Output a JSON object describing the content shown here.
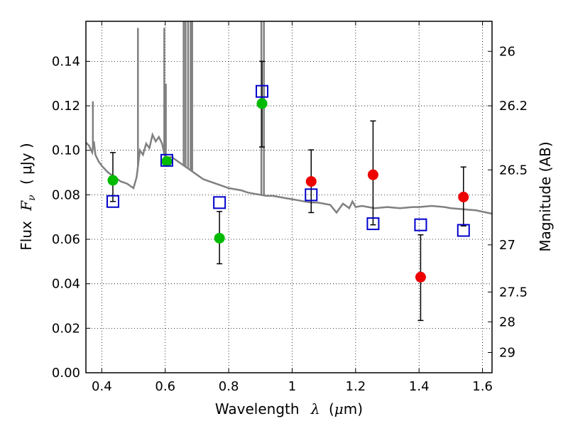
{
  "chart_data": {
    "type": "scatter",
    "xlabel": "Wavelength",
    "xlabel_symbol": "λ",
    "xlabel_unit_open": "(",
    "xlabel_unit_mu": "μ",
    "xlabel_unit_rest": "m)",
    "ylabel": "Flux",
    "ylabel_symbol_base": "F",
    "ylabel_symbol_sub": "ν",
    "ylabel_unit": "( μJy )",
    "y2label": "Magnitude (AB)",
    "xlim": [
      0.35,
      1.63
    ],
    "ylim": [
      0.0,
      0.158
    ],
    "grid": true,
    "x_ticks": [
      0.4,
      0.6,
      0.8,
      1.0,
      1.2,
      1.4,
      1.6
    ],
    "x_tick_labels": [
      "0.4",
      "0.6",
      "0.8",
      "1",
      "1.2",
      "1.4",
      "1.6"
    ],
    "y_ticks": [
      0.0,
      0.02,
      0.04,
      0.06,
      0.08,
      0.1,
      0.12,
      0.14
    ],
    "y_tick_labels": [
      "0.00",
      "0.02",
      "0.04",
      "0.06",
      "0.08",
      "0.10",
      "0.12",
      "0.14"
    ],
    "y2_ticks": [
      {
        "label": "26",
        "flux": 0.1445
      },
      {
        "label": "26.2",
        "flux": 0.12
      },
      {
        "label": "26.5",
        "flux": 0.0912
      },
      {
        "label": "27",
        "flux": 0.0575
      },
      {
        "label": "27.5",
        "flux": 0.0363
      },
      {
        "label": "28",
        "flux": 0.0229
      },
      {
        "label": "29",
        "flux": 0.0091
      }
    ],
    "series": [
      {
        "kind": "line",
        "color": "#808080",
        "points": [
          [
            0.35,
            0.1035
          ],
          [
            0.36,
            0.102
          ],
          [
            0.37,
            0.099
          ],
          [
            0.375,
            0.104
          ],
          [
            0.38,
            0.098
          ],
          [
            0.39,
            0.095
          ],
          [
            0.4,
            0.093
          ],
          [
            0.42,
            0.09
          ],
          [
            0.44,
            0.088
          ],
          [
            0.46,
            0.086
          ],
          [
            0.48,
            0.085
          ],
          [
            0.5,
            0.083
          ],
          [
            0.51,
            0.088
          ],
          [
            0.52,
            0.1
          ],
          [
            0.53,
            0.098
          ],
          [
            0.54,
            0.103
          ],
          [
            0.55,
            0.101
          ],
          [
            0.56,
            0.107
          ],
          [
            0.57,
            0.104
          ],
          [
            0.58,
            0.106
          ],
          [
            0.59,
            0.103
          ],
          [
            0.6,
            0.0965
          ],
          [
            0.62,
            0.097
          ],
          [
            0.64,
            0.095
          ],
          [
            0.66,
            0.093
          ],
          [
            0.68,
            0.091
          ],
          [
            0.7,
            0.089
          ],
          [
            0.72,
            0.087
          ],
          [
            0.74,
            0.086
          ],
          [
            0.76,
            0.085
          ],
          [
            0.78,
            0.084
          ],
          [
            0.8,
            0.083
          ],
          [
            0.82,
            0.0825
          ],
          [
            0.84,
            0.082
          ],
          [
            0.86,
            0.081
          ],
          [
            0.88,
            0.0805
          ],
          [
            0.9,
            0.08
          ],
          [
            0.92,
            0.0795
          ],
          [
            0.94,
            0.0795
          ],
          [
            0.96,
            0.079
          ],
          [
            0.98,
            0.0785
          ],
          [
            1.0,
            0.078
          ],
          [
            1.02,
            0.0775
          ],
          [
            1.04,
            0.077
          ],
          [
            1.06,
            0.0765
          ],
          [
            1.08,
            0.0765
          ],
          [
            1.1,
            0.076
          ],
          [
            1.12,
            0.0755
          ],
          [
            1.14,
            0.072
          ],
          [
            1.16,
            0.076
          ],
          [
            1.18,
            0.074
          ],
          [
            1.19,
            0.077
          ],
          [
            1.2,
            0.0745
          ],
          [
            1.22,
            0.075
          ],
          [
            1.24,
            0.0745
          ],
          [
            1.26,
            0.074
          ],
          [
            1.3,
            0.0745
          ],
          [
            1.34,
            0.074
          ],
          [
            1.38,
            0.0745
          ],
          [
            1.4,
            0.0745
          ],
          [
            1.44,
            0.075
          ],
          [
            1.48,
            0.0745
          ],
          [
            1.5,
            0.074
          ],
          [
            1.54,
            0.0735
          ],
          [
            1.58,
            0.073
          ],
          [
            1.63,
            0.0715
          ]
        ],
        "emission_lines": [
          [
            0.372,
            0.122
          ],
          [
            0.514,
            0.155
          ],
          [
            0.597,
            0.155
          ],
          [
            0.602,
            0.13
          ],
          [
            0.658,
            0.158
          ],
          [
            0.664,
            0.158
          ],
          [
            0.672,
            0.158
          ],
          [
            0.68,
            0.158
          ],
          [
            0.685,
            0.158
          ],
          [
            0.903,
            0.158
          ],
          [
            0.911,
            0.158
          ]
        ]
      },
      {
        "kind": "errorbar",
        "color": "#000000",
        "points": [
          {
            "x": 0.435,
            "ylow": 0.077,
            "yhigh": 0.099
          },
          {
            "x": 0.771,
            "ylow": 0.049,
            "yhigh": 0.0725
          },
          {
            "x": 0.905,
            "ylow": 0.1015,
            "yhigh": 0.14
          },
          {
            "x": 1.06,
            "ylow": 0.072,
            "yhigh": 0.1002
          },
          {
            "x": 1.255,
            "ylow": 0.0665,
            "yhigh": 0.1132
          },
          {
            "x": 1.405,
            "ylow": 0.0235,
            "yhigh": 0.062
          },
          {
            "x": 1.54,
            "ylow": 0.066,
            "yhigh": 0.0925
          }
        ]
      },
      {
        "kind": "marker-circle",
        "color": "#00bb00",
        "points": [
          [
            0.435,
            0.0865
          ],
          [
            0.605,
            0.095
          ],
          [
            0.771,
            0.0605
          ],
          [
            0.905,
            0.121
          ]
        ]
      },
      {
        "kind": "marker-circle",
        "color": "#ee0000",
        "points": [
          [
            1.06,
            0.086
          ],
          [
            1.255,
            0.089
          ],
          [
            1.405,
            0.043
          ],
          [
            1.54,
            0.079
          ]
        ]
      },
      {
        "kind": "marker-square-open",
        "color": "#0000cc",
        "points": [
          [
            0.435,
            0.077
          ],
          [
            0.605,
            0.0955
          ],
          [
            0.771,
            0.0765
          ],
          [
            0.905,
            0.1265
          ],
          [
            1.06,
            0.08
          ],
          [
            1.255,
            0.067
          ],
          [
            1.405,
            0.0665
          ],
          [
            1.54,
            0.064
          ]
        ]
      }
    ]
  }
}
